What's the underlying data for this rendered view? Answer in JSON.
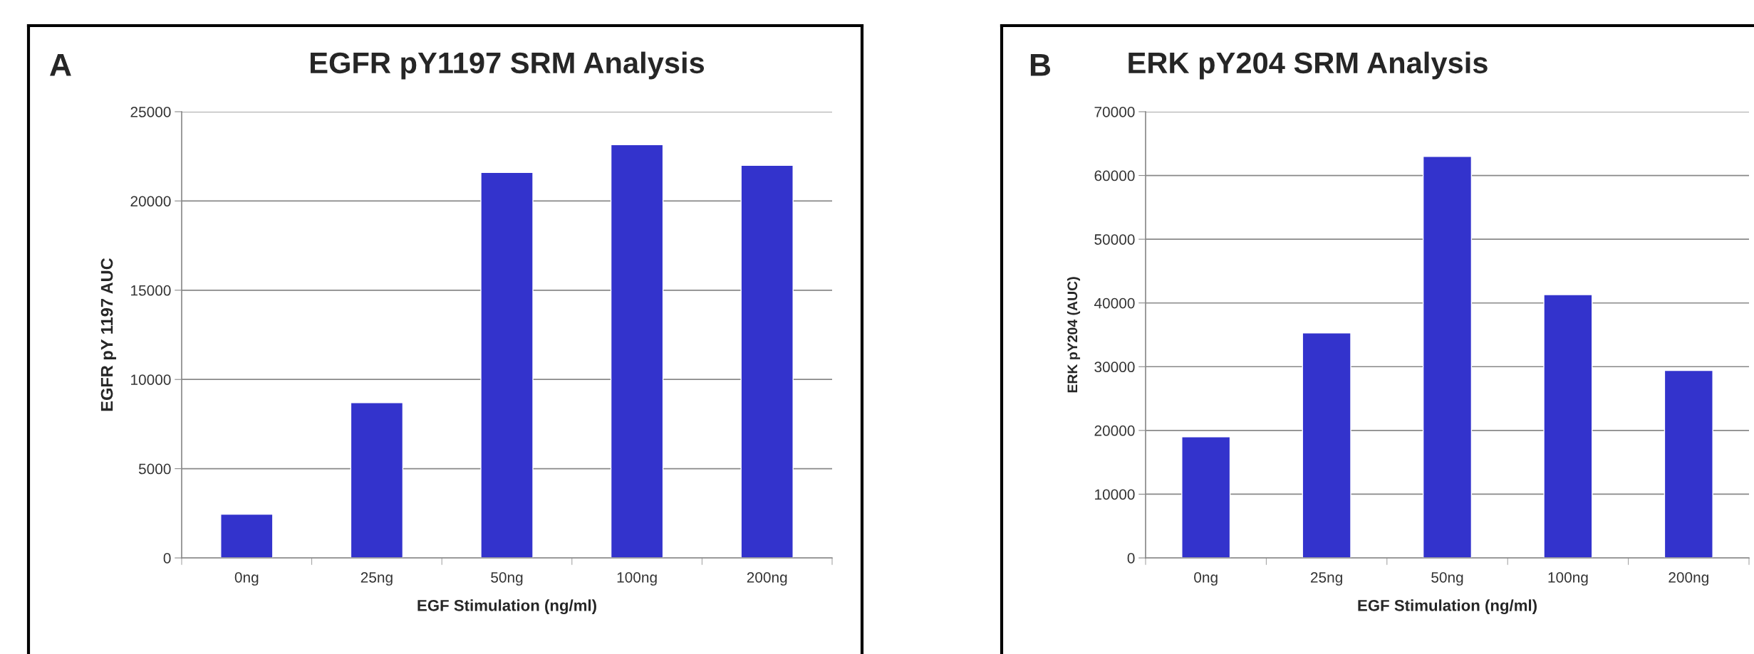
{
  "chart_data": [
    {
      "type": "bar",
      "title": "EGFR pY1197 SRM Analysis",
      "xlabel": "EGF Stimulation (ng/ml)",
      "ylabel": "EGFR pY 1197 AUC",
      "annotations": [
        "A"
      ],
      "categories": [
        "0ng",
        "25ng",
        "50ng",
        "100ng",
        "200ng"
      ],
      "values": [
        2450,
        8700,
        21600,
        23150,
        22000
      ],
      "color": "#3333cc",
      "ylim": [
        0,
        25000
      ],
      "yticks": [
        0,
        5000,
        10000,
        15000,
        20000,
        25000
      ],
      "grid": "y"
    },
    {
      "type": "bar",
      "title": "ERK pY204 SRM Analysis",
      "xlabel": "EGF Stimulation (ng/ml)",
      "ylabel": "ERK pY204 (AUC)",
      "annotations": [
        "B"
      ],
      "categories": [
        "0ng",
        "25ng",
        "50ng",
        "100ng",
        "200ng"
      ],
      "values": [
        19000,
        35300,
        63000,
        41300,
        29400
      ],
      "color": "#3333cc",
      "ylim": [
        0,
        70000
      ],
      "yticks": [
        0,
        10000,
        20000,
        30000,
        40000,
        50000,
        60000,
        70000
      ],
      "grid": "y"
    }
  ]
}
